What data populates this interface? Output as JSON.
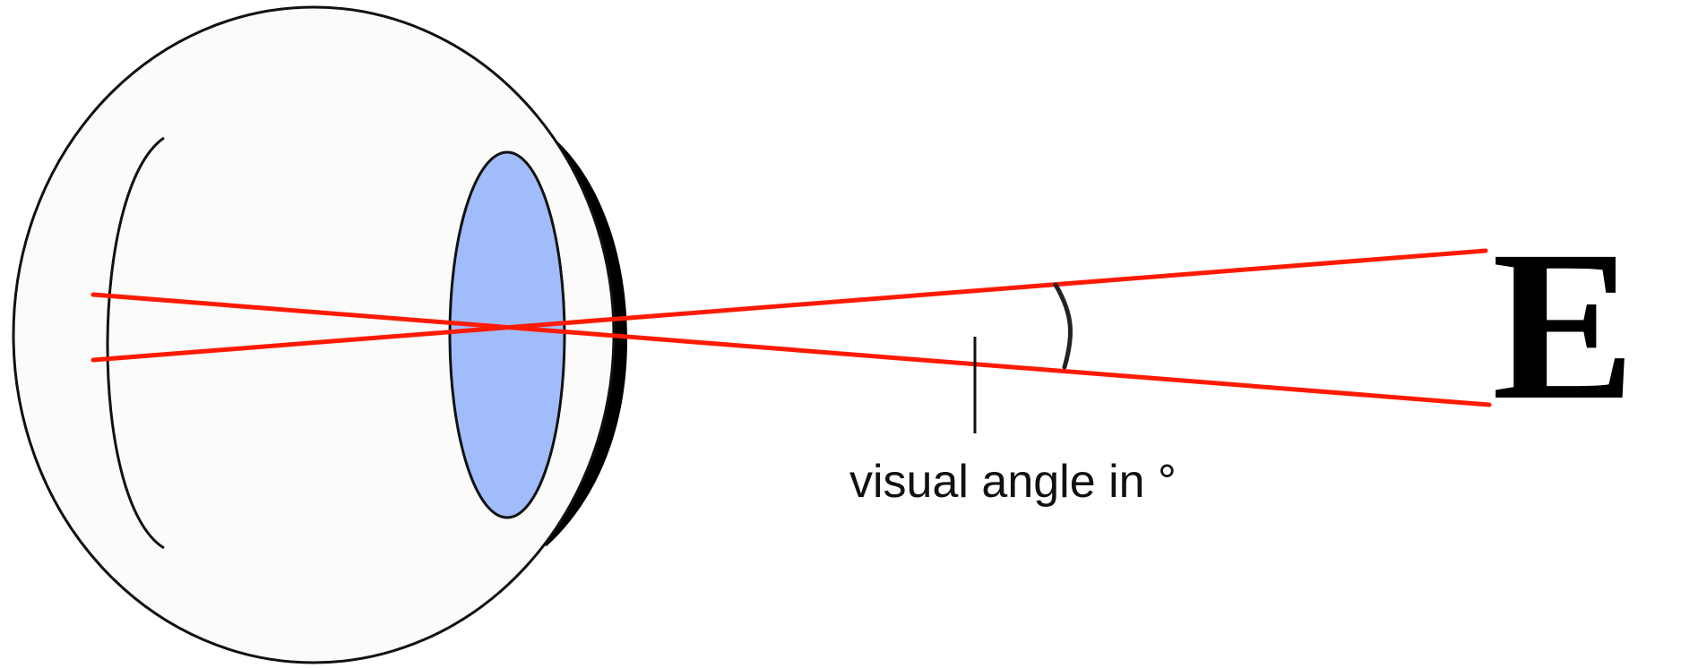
{
  "diagram": {
    "label_text": "visual angle in °",
    "optotype_letter": "E"
  },
  "colors": {
    "eye_fill": "#fbfbf9",
    "lens_fill": "#a1bcfa",
    "ray_color": "#ff1a00",
    "outline_color": "#111111"
  },
  "icons": {
    "eye": "eyeball-cross-section",
    "lens": "lens-ellipse",
    "optotype": "snellen-letter"
  }
}
